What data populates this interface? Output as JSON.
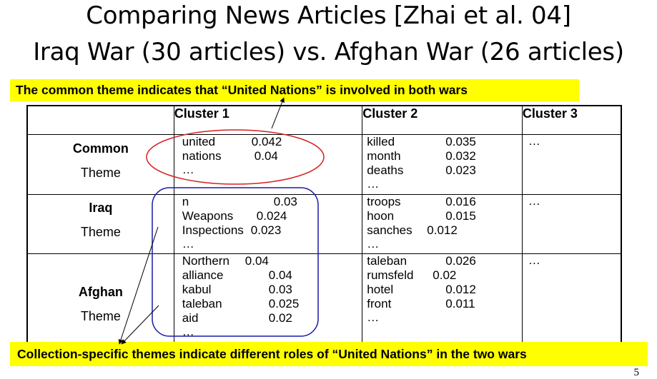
{
  "title": {
    "line1": "Comparing News Articles [Zhai et al. 04]",
    "line2": "Iraq War (30 articles) vs. Afghan War (26 articles)"
  },
  "banner_top": "The common theme indicates that “United Nations”  is involved in both wars",
  "banner_bottom": "Collection-specific themes indicate different roles of “United Nations” in the two wars",
  "table": {
    "headers": [
      "Cluster 1",
      "Cluster 2",
      "Cluster 3"
    ],
    "rows": [
      {
        "theme": "Common",
        "theme_word": "Theme",
        "c1": [
          [
            "united",
            "0.042"
          ],
          [
            "nations",
            "0.04"
          ],
          [
            "…",
            ""
          ]
        ],
        "c2": [
          [
            "killed",
            "0.035"
          ],
          [
            "month",
            "0.032"
          ],
          [
            "deaths",
            "0.023"
          ],
          [
            "…",
            ""
          ]
        ],
        "c3": "…"
      },
      {
        "theme": "Iraq",
        "theme_word": "Theme",
        "c1": [
          [
            "n",
            "0.03"
          ],
          [
            "Weapons",
            "0.024"
          ],
          [
            "Inspections",
            "0.023"
          ],
          [
            "…",
            ""
          ]
        ],
        "c2": [
          [
            "troops",
            "0.016"
          ],
          [
            "hoon",
            "0.015"
          ],
          [
            "sanches",
            "0.012"
          ],
          [
            "…",
            ""
          ]
        ],
        "c3": "…"
      },
      {
        "theme": "Afghan",
        "theme_word": "Theme",
        "c1": [
          [
            "Northern",
            "0.04"
          ],
          [
            "alliance",
            "0.04"
          ],
          [
            "kabul",
            "0.03"
          ],
          [
            "taleban",
            "0.025"
          ],
          [
            "aid",
            "0.02"
          ],
          [
            "…",
            ""
          ]
        ],
        "c2": [
          [
            "taleban",
            "0.026"
          ],
          [
            "rumsfeld",
            "0.02"
          ],
          [
            "hotel",
            "0.012"
          ],
          [
            "front",
            "0.011"
          ],
          [
            "…",
            ""
          ]
        ],
        "c3": "…"
      }
    ]
  },
  "slide_number": "5",
  "colors": {
    "banner": "#ffff00",
    "ellipse": "#d62020",
    "rounded_box": "#1a1aa6"
  }
}
